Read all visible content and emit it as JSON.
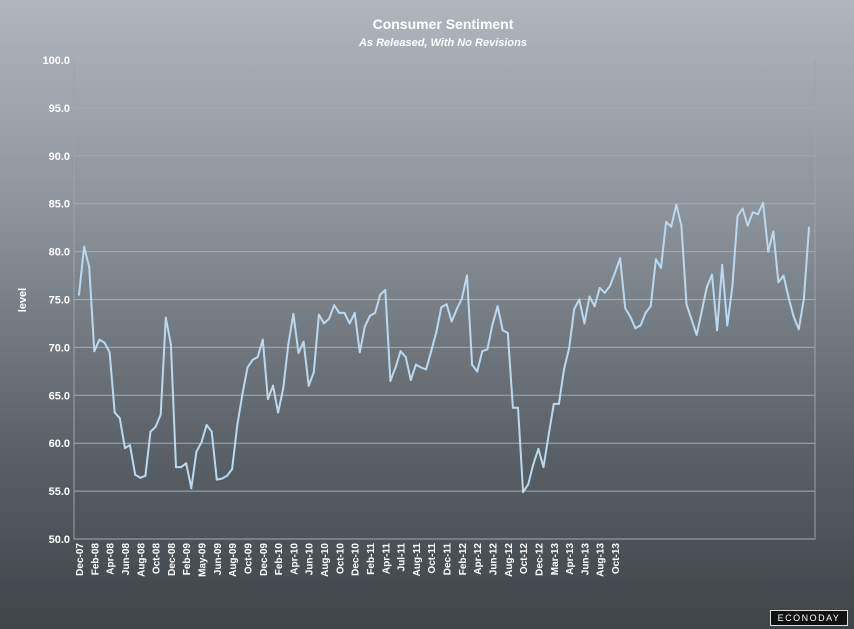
{
  "brand": "ECONODAY",
  "chart_data": {
    "type": "line",
    "title": "Consumer Sentiment",
    "subtitle": "As Released, With No Revisions",
    "xlabel": "",
    "ylabel": "level",
    "ylim": [
      50,
      100
    ],
    "yticks": [
      "50.0",
      "55.0",
      "60.0",
      "65.0",
      "70.0",
      "75.0",
      "80.0",
      "85.0",
      "90.0",
      "95.0",
      "100.0"
    ],
    "grid": true,
    "line_color": "#bcd8ee",
    "xticks": [
      {
        "index": 0,
        "label": "Dec-07"
      },
      {
        "index": 3,
        "label": "Feb-08"
      },
      {
        "index": 6,
        "label": "Apr-08"
      },
      {
        "index": 9,
        "label": "Jun-08"
      },
      {
        "index": 12,
        "label": "Aug-08"
      },
      {
        "index": 15,
        "label": "Oct-08"
      },
      {
        "index": 18,
        "label": "Dec-08"
      },
      {
        "index": 21,
        "label": "Feb-09"
      },
      {
        "index": 24,
        "label": "May-09"
      },
      {
        "index": 27,
        "label": "Jun-09"
      },
      {
        "index": 30,
        "label": "Aug-09"
      },
      {
        "index": 33,
        "label": "Oct-09"
      },
      {
        "index": 36,
        "label": "Dec-09"
      },
      {
        "index": 39,
        "label": "Feb-10"
      },
      {
        "index": 42,
        "label": "Apr-10"
      },
      {
        "index": 45,
        "label": "Jun-10"
      },
      {
        "index": 48,
        "label": "Aug-10"
      },
      {
        "index": 51,
        "label": "Oct-10"
      },
      {
        "index": 54,
        "label": "Dec-10"
      },
      {
        "index": 57,
        "label": "Feb-11"
      },
      {
        "index": 60,
        "label": "Apr-11"
      },
      {
        "index": 63,
        "label": "Jul-11"
      },
      {
        "index": 66,
        "label": "Aug-11"
      },
      {
        "index": 69,
        "label": "Oct-11"
      },
      {
        "index": 72,
        "label": "Dec-11"
      },
      {
        "index": 75,
        "label": "Feb-12"
      },
      {
        "index": 78,
        "label": "Apr-12"
      },
      {
        "index": 81,
        "label": "Jun-12"
      },
      {
        "index": 84,
        "label": "Aug-12"
      },
      {
        "index": 87,
        "label": "Oct-12"
      },
      {
        "index": 90,
        "label": "Dec-12"
      },
      {
        "index": 93,
        "label": "Mar-13"
      },
      {
        "index": 96,
        "label": "Apr-13"
      },
      {
        "index": 99,
        "label": "Jun-13"
      },
      {
        "index": 102,
        "label": "Aug-13"
      },
      {
        "index": 105,
        "label": "Oct-13"
      }
    ],
    "series": [
      {
        "values": [
          75.5,
          80.5,
          78.4,
          69.6,
          70.8,
          70.5,
          69.5,
          63.2,
          62.6,
          59.5,
          59.8,
          56.7,
          56.4,
          56.6,
          61.2,
          61.7,
          63.0,
          73.1,
          70.3,
          57.5,
          57.5,
          57.9,
          55.3,
          59.1,
          60.1,
          61.9,
          61.2,
          56.2,
          56.3,
          56.6,
          57.3,
          61.9,
          65.1,
          67.9,
          68.7,
          69.0,
          70.8,
          64.6,
          66.0,
          63.2,
          65.7,
          70.3,
          73.5,
          69.4,
          70.6,
          66.0,
          67.4,
          73.4,
          72.5,
          73.0,
          74.4,
          73.6,
          73.6,
          72.5,
          73.6,
          69.5,
          72.2,
          73.3,
          73.6,
          75.5,
          76.0,
          66.5,
          67.9,
          69.6,
          69.0,
          66.6,
          68.2,
          67.9,
          67.7,
          69.6,
          71.6,
          74.2,
          74.5,
          72.7,
          74.0,
          75.1,
          77.5,
          68.2,
          67.5,
          69.6,
          69.8,
          72.4,
          74.3,
          71.8,
          71.5,
          63.7,
          63.7,
          54.9,
          55.7,
          57.8,
          59.4,
          57.5,
          60.9,
          64.1,
          64.1,
          67.7,
          69.9,
          74.0,
          75.0,
          72.5,
          75.3,
          74.3,
          76.2,
          75.7,
          76.4,
          77.8,
          79.3,
          74.1,
          73.2,
          72.0,
          72.3,
          73.6,
          74.3,
          79.2,
          78.3,
          83.1,
          82.6,
          84.9,
          82.7,
          74.5,
          72.9,
          71.3,
          73.8,
          76.3,
          77.6,
          71.8,
          78.6,
          72.3,
          76.4,
          83.7,
          84.5,
          82.7,
          84.1,
          83.9,
          85.1,
          80.0,
          82.1,
          76.8,
          77.5,
          75.2,
          73.2,
          71.9,
          75.1,
          82.5
        ]
      }
    ]
  }
}
